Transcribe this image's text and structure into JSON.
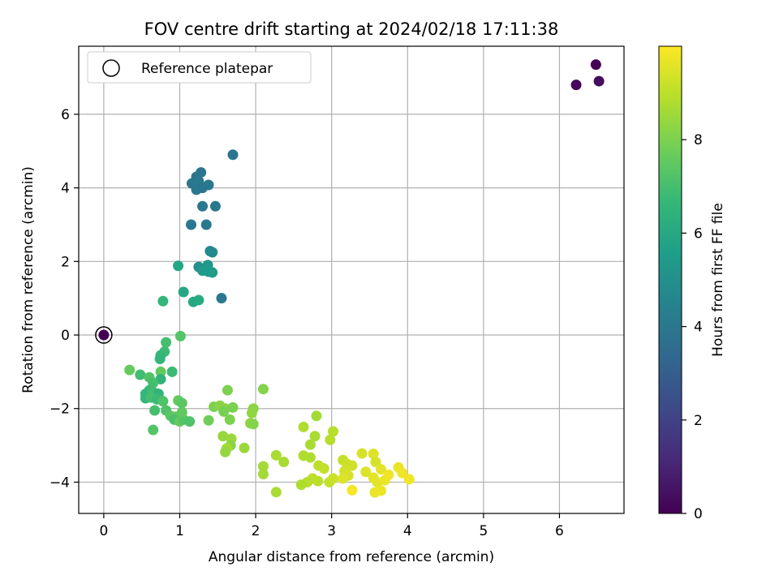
{
  "chart_data": {
    "type": "scatter",
    "title": "FOV centre drift starting at 2024/02/18 17:11:38",
    "xlabel": "Angular distance from reference (arcmin)",
    "ylabel": "Rotation from reference (arcmin)",
    "xlim": [
      -0.33,
      6.85
    ],
    "ylim": [
      -4.85,
      7.85
    ],
    "xticks": [
      0,
      1,
      2,
      3,
      4,
      5,
      6
    ],
    "yticks": [
      -4,
      -2,
      0,
      2,
      4,
      6
    ],
    "grid": true,
    "legend": {
      "position": "top-left",
      "entries": [
        "Reference platepar"
      ]
    },
    "reference_point": {
      "x": 0,
      "y": 0,
      "label": "Reference platepar"
    },
    "colorbar": {
      "label": "Hours from first FF file",
      "ticks": [
        0,
        2,
        4,
        6,
        8
      ],
      "range": [
        0,
        10
      ],
      "colormap": "viridis",
      "colormap_stops": [
        "#440154",
        "#482878",
        "#3e4989",
        "#31688e",
        "#26828e",
        "#1f9e89",
        "#35b779",
        "#6ece58",
        "#b5de2b",
        "#fde725"
      ]
    },
    "points": [
      {
        "x": 6.48,
        "y": 7.35,
        "h": 0.1
      },
      {
        "x": 6.22,
        "y": 6.8,
        "h": 0.2
      },
      {
        "x": 6.52,
        "y": 6.9,
        "h": 0.3
      },
      {
        "x": 1.7,
        "y": 4.9,
        "h": 3.9
      },
      {
        "x": 1.28,
        "y": 4.42,
        "h": 3.9
      },
      {
        "x": 1.22,
        "y": 4.3,
        "h": 3.9
      },
      {
        "x": 1.16,
        "y": 4.12,
        "h": 3.9
      },
      {
        "x": 1.25,
        "y": 4.18,
        "h": 4.0
      },
      {
        "x": 1.38,
        "y": 4.08,
        "h": 4.0
      },
      {
        "x": 1.22,
        "y": 3.95,
        "h": 4.0
      },
      {
        "x": 1.3,
        "y": 4.0,
        "h": 3.9
      },
      {
        "x": 1.3,
        "y": 3.5,
        "h": 4.0
      },
      {
        "x": 1.47,
        "y": 3.5,
        "h": 4.0
      },
      {
        "x": 1.15,
        "y": 3.0,
        "h": 4.0
      },
      {
        "x": 1.35,
        "y": 3.0,
        "h": 4.0
      },
      {
        "x": 1.4,
        "y": 2.28,
        "h": 4.7
      },
      {
        "x": 1.43,
        "y": 2.25,
        "h": 4.8
      },
      {
        "x": 1.25,
        "y": 1.85,
        "h": 5.0
      },
      {
        "x": 1.37,
        "y": 1.9,
        "h": 5.3
      },
      {
        "x": 1.3,
        "y": 1.75,
        "h": 5.4
      },
      {
        "x": 1.38,
        "y": 1.72,
        "h": 5.4
      },
      {
        "x": 1.43,
        "y": 1.7,
        "h": 5.5
      },
      {
        "x": 0.98,
        "y": 1.88,
        "h": 5.9
      },
      {
        "x": 1.05,
        "y": 1.17,
        "h": 5.9
      },
      {
        "x": 1.18,
        "y": 0.9,
        "h": 5.9
      },
      {
        "x": 1.25,
        "y": 0.95,
        "h": 6.1
      },
      {
        "x": 0.78,
        "y": 0.92,
        "h": 6.6
      },
      {
        "x": 1.55,
        "y": 1.0,
        "h": 4.0
      },
      {
        "x": 0.82,
        "y": -0.2,
        "h": 7.0
      },
      {
        "x": 1.01,
        "y": -0.03,
        "h": 7.3
      },
      {
        "x": 0.8,
        "y": -0.45,
        "h": 6.8
      },
      {
        "x": 0.75,
        "y": -0.55,
        "h": 6.7
      },
      {
        "x": 0.74,
        "y": -0.65,
        "h": 6.6
      },
      {
        "x": 0.34,
        "y": -0.95,
        "h": 7.6
      },
      {
        "x": 0.48,
        "y": -1.08,
        "h": 6.9
      },
      {
        "x": 0.6,
        "y": -1.15,
        "h": 7.2
      },
      {
        "x": 0.75,
        "y": -1.0,
        "h": 7.5
      },
      {
        "x": 0.9,
        "y": -1.0,
        "h": 6.8
      },
      {
        "x": 0.75,
        "y": -1.2,
        "h": 6.5
      },
      {
        "x": 0.65,
        "y": -1.3,
        "h": 7.0
      },
      {
        "x": 0.6,
        "y": -1.5,
        "h": 6.8
      },
      {
        "x": 0.55,
        "y": -1.6,
        "h": 6.6
      },
      {
        "x": 0.65,
        "y": -1.55,
        "h": 6.9
      },
      {
        "x": 0.72,
        "y": -1.6,
        "h": 6.5
      },
      {
        "x": 0.55,
        "y": -1.72,
        "h": 6.6
      },
      {
        "x": 0.62,
        "y": -1.7,
        "h": 7.0
      },
      {
        "x": 0.7,
        "y": -1.75,
        "h": 6.8
      },
      {
        "x": 0.78,
        "y": -1.8,
        "h": 7.2
      },
      {
        "x": 0.98,
        "y": -1.78,
        "h": 7.6
      },
      {
        "x": 1.03,
        "y": -1.85,
        "h": 7.4
      },
      {
        "x": 0.67,
        "y": -2.05,
        "h": 7.0
      },
      {
        "x": 0.82,
        "y": -2.05,
        "h": 7.2
      },
      {
        "x": 0.88,
        "y": -2.2,
        "h": 7.4
      },
      {
        "x": 0.95,
        "y": -2.22,
        "h": 7.5
      },
      {
        "x": 0.93,
        "y": -2.3,
        "h": 7.1
      },
      {
        "x": 1.0,
        "y": -2.35,
        "h": 7.6
      },
      {
        "x": 1.05,
        "y": -2.3,
        "h": 7.3
      },
      {
        "x": 1.13,
        "y": -2.35,
        "h": 7.2
      },
      {
        "x": 0.65,
        "y": -2.58,
        "h": 7.3
      },
      {
        "x": 1.03,
        "y": -2.1,
        "h": 7.5
      },
      {
        "x": 1.63,
        "y": -1.5,
        "h": 8.0
      },
      {
        "x": 2.1,
        "y": -1.47,
        "h": 8.1
      },
      {
        "x": 1.45,
        "y": -1.95,
        "h": 8.0
      },
      {
        "x": 1.53,
        "y": -1.92,
        "h": 8.2
      },
      {
        "x": 1.6,
        "y": -2.0,
        "h": 8.2
      },
      {
        "x": 1.7,
        "y": -1.97,
        "h": 8.0
      },
      {
        "x": 1.58,
        "y": -2.08,
        "h": 7.9
      },
      {
        "x": 1.97,
        "y": -2.0,
        "h": 8.2
      },
      {
        "x": 1.95,
        "y": -2.12,
        "h": 8.3
      },
      {
        "x": 1.38,
        "y": -2.32,
        "h": 7.8
      },
      {
        "x": 1.66,
        "y": -2.3,
        "h": 8.0
      },
      {
        "x": 1.93,
        "y": -2.4,
        "h": 8.3
      },
      {
        "x": 1.97,
        "y": -2.42,
        "h": 8.1
      },
      {
        "x": 1.57,
        "y": -2.75,
        "h": 8.4
      },
      {
        "x": 1.68,
        "y": -2.82,
        "h": 8.5
      },
      {
        "x": 1.67,
        "y": -3.0,
        "h": 8.2
      },
      {
        "x": 1.62,
        "y": -3.08,
        "h": 8.6
      },
      {
        "x": 1.6,
        "y": -3.18,
        "h": 8.4
      },
      {
        "x": 1.85,
        "y": -3.07,
        "h": 8.5
      },
      {
        "x": 2.8,
        "y": -2.2,
        "h": 8.6
      },
      {
        "x": 2.63,
        "y": -2.5,
        "h": 8.8
      },
      {
        "x": 3.02,
        "y": -2.62,
        "h": 8.9
      },
      {
        "x": 2.78,
        "y": -2.75,
        "h": 8.7
      },
      {
        "x": 2.98,
        "y": -2.85,
        "h": 8.9
      },
      {
        "x": 2.72,
        "y": -2.98,
        "h": 8.7
      },
      {
        "x": 2.27,
        "y": -3.27,
        "h": 8.7
      },
      {
        "x": 2.63,
        "y": -3.28,
        "h": 8.8
      },
      {
        "x": 2.72,
        "y": -3.33,
        "h": 8.8
      },
      {
        "x": 2.37,
        "y": -3.45,
        "h": 8.7
      },
      {
        "x": 2.1,
        "y": -3.57,
        "h": 8.6
      },
      {
        "x": 2.83,
        "y": -3.55,
        "h": 9.0
      },
      {
        "x": 2.9,
        "y": -3.63,
        "h": 9.1
      },
      {
        "x": 2.1,
        "y": -3.78,
        "h": 8.6
      },
      {
        "x": 2.75,
        "y": -3.9,
        "h": 9.0
      },
      {
        "x": 2.68,
        "y": -4.0,
        "h": 8.9
      },
      {
        "x": 2.6,
        "y": -4.07,
        "h": 8.8
      },
      {
        "x": 2.82,
        "y": -3.97,
        "h": 9.0
      },
      {
        "x": 2.97,
        "y": -4.0,
        "h": 9.1
      },
      {
        "x": 3.02,
        "y": -3.9,
        "h": 9.2
      },
      {
        "x": 2.27,
        "y": -4.27,
        "h": 8.7
      },
      {
        "x": 3.15,
        "y": -3.4,
        "h": 9.1
      },
      {
        "x": 3.2,
        "y": -3.5,
        "h": 9.2
      },
      {
        "x": 3.27,
        "y": -3.55,
        "h": 9.3
      },
      {
        "x": 3.4,
        "y": -3.22,
        "h": 9.4
      },
      {
        "x": 3.55,
        "y": -3.23,
        "h": 9.5
      },
      {
        "x": 3.58,
        "y": -3.45,
        "h": 9.4
      },
      {
        "x": 3.17,
        "y": -3.7,
        "h": 9.3
      },
      {
        "x": 3.22,
        "y": -3.82,
        "h": 9.4
      },
      {
        "x": 3.15,
        "y": -3.9,
        "h": 9.5
      },
      {
        "x": 3.45,
        "y": -3.72,
        "h": 9.5
      },
      {
        "x": 3.65,
        "y": -3.65,
        "h": 9.6
      },
      {
        "x": 3.55,
        "y": -3.88,
        "h": 9.6
      },
      {
        "x": 3.6,
        "y": -4.0,
        "h": 9.6
      },
      {
        "x": 3.7,
        "y": -3.95,
        "h": 9.7
      },
      {
        "x": 3.75,
        "y": -3.8,
        "h": 9.8
      },
      {
        "x": 3.88,
        "y": -3.6,
        "h": 9.7
      },
      {
        "x": 3.93,
        "y": -3.75,
        "h": 9.8
      },
      {
        "x": 4.02,
        "y": -3.92,
        "h": 9.8
      },
      {
        "x": 3.65,
        "y": -4.23,
        "h": 9.7
      },
      {
        "x": 3.57,
        "y": -4.28,
        "h": 9.7
      },
      {
        "x": 3.27,
        "y": -4.22,
        "h": 9.9
      }
    ]
  }
}
